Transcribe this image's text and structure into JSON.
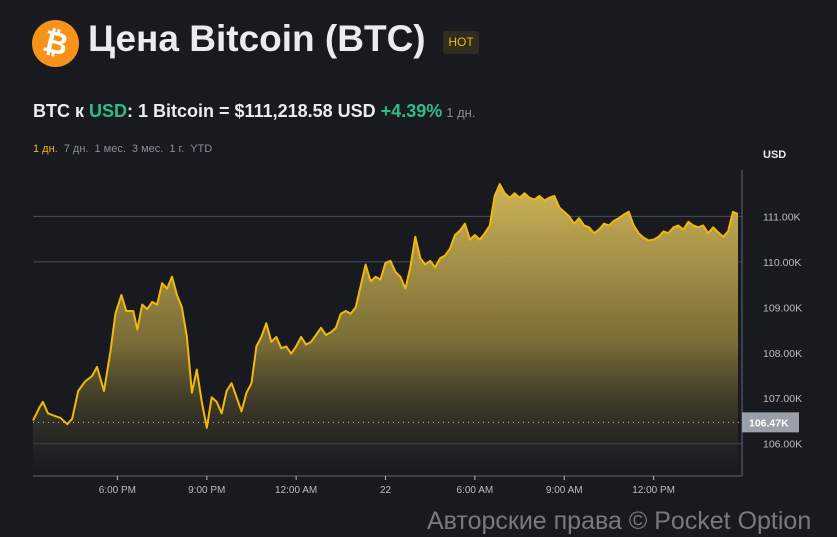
{
  "header": {
    "logo_glyph": "₿",
    "title": "Цена Bitcoin (BTC)",
    "badge": "HOT"
  },
  "rate": {
    "pair_base": "BTC к ",
    "pair_quote": "USD",
    "text": ": 1 Bitcoin = $111,218.58 USD ",
    "change": "+4.39%",
    "period": "1 дн."
  },
  "ranges": [
    {
      "label": "1 дн.",
      "active": true
    },
    {
      "label": "7 дн.",
      "active": false
    },
    {
      "label": "1 мес.",
      "active": false
    },
    {
      "label": "3 мес.",
      "active": false
    },
    {
      "label": "1 г.",
      "active": false
    },
    {
      "label": "YTD",
      "active": false
    }
  ],
  "watermark": "Авторские права © Pocket Option",
  "colors": {
    "background": "#181a20",
    "line": "#f0b90b",
    "positive": "#2ebd85",
    "badge": "#f0b90b"
  },
  "chart_data": {
    "type": "area",
    "unit_label": "USD",
    "ylim": [
      105.29,
      112.02
    ],
    "y_ticks": [
      111,
      110,
      109,
      108,
      107,
      106
    ],
    "y_tick_labels": [
      "111.00K",
      "110.00K",
      "109.00K",
      "108.00K",
      "107.00K",
      "106.00K"
    ],
    "gridlines": [
      111,
      110,
      106
    ],
    "reference_line": {
      "value": 106.47,
      "label": "106.47K",
      "style": "dotted"
    },
    "x_ticks": [
      {
        "time": "18:00",
        "label": "6:00 PM"
      },
      {
        "time": "21:00",
        "label": "9:00 PM"
      },
      {
        "time": "00:00",
        "label": "12:00 AM"
      },
      {
        "time": "03:00",
        "label": "22"
      },
      {
        "time": "06:00",
        "label": "6:00 AM"
      },
      {
        "time": "09:00",
        "label": "9:00 AM"
      },
      {
        "time": "12:00",
        "label": "12:00 PM"
      }
    ],
    "y_units": "thousand USD",
    "points": [
      [
        "15:10",
        106.51
      ],
      [
        "15:24",
        106.82
      ],
      [
        "15:30",
        106.92
      ],
      [
        "15:40",
        106.67
      ],
      [
        "15:54",
        106.61
      ],
      [
        "16:05",
        106.57
      ],
      [
        "16:19",
        106.43
      ],
      [
        "16:29",
        106.55
      ],
      [
        "16:41",
        107.16
      ],
      [
        "16:55",
        107.37
      ],
      [
        "17:09",
        107.49
      ],
      [
        "17:19",
        107.69
      ],
      [
        "17:33",
        107.16
      ],
      [
        "17:46",
        108.04
      ],
      [
        "17:56",
        108.86
      ],
      [
        "18:08",
        109.27
      ],
      [
        "18:18",
        108.92
      ],
      [
        "18:32",
        108.92
      ],
      [
        "18:40",
        108.51
      ],
      [
        "18:50",
        109.06
      ],
      [
        "19:00",
        108.96
      ],
      [
        "19:10",
        109.12
      ],
      [
        "19:20",
        109.06
      ],
      [
        "19:30",
        109.53
      ],
      [
        "19:40",
        109.41
      ],
      [
        "19:50",
        109.67
      ],
      [
        "20:00",
        109.27
      ],
      [
        "20:10",
        109.0
      ],
      [
        "20:20",
        108.35
      ],
      [
        "20:30",
        107.12
      ],
      [
        "20:40",
        107.63
      ],
      [
        "20:50",
        106.92
      ],
      [
        "21:00",
        106.35
      ],
      [
        "21:10",
        107.02
      ],
      [
        "21:20",
        106.92
      ],
      [
        "21:30",
        106.67
      ],
      [
        "21:40",
        107.16
      ],
      [
        "21:50",
        107.33
      ],
      [
        "22:00",
        107.02
      ],
      [
        "22:10",
        106.71
      ],
      [
        "22:20",
        107.12
      ],
      [
        "22:30",
        107.33
      ],
      [
        "22:40",
        108.14
      ],
      [
        "22:50",
        108.35
      ],
      [
        "23:00",
        108.65
      ],
      [
        "23:10",
        108.24
      ],
      [
        "23:20",
        108.35
      ],
      [
        "23:30",
        108.1
      ],
      [
        "23:40",
        108.14
      ],
      [
        "23:50",
        107.98
      ],
      [
        "00:00",
        108.14
      ],
      [
        "00:10",
        108.35
      ],
      [
        "00:20",
        108.18
      ],
      [
        "00:30",
        108.24
      ],
      [
        "00:40",
        108.39
      ],
      [
        "00:50",
        108.55
      ],
      [
        "01:00",
        108.39
      ],
      [
        "01:10",
        108.45
      ],
      [
        "01:20",
        108.55
      ],
      [
        "01:30",
        108.86
      ],
      [
        "01:40",
        108.92
      ],
      [
        "01:50",
        108.86
      ],
      [
        "02:00",
        109.0
      ],
      [
        "02:10",
        109.47
      ],
      [
        "02:20",
        109.94
      ],
      [
        "02:30",
        109.57
      ],
      [
        "02:40",
        109.67
      ],
      [
        "02:50",
        109.61
      ],
      [
        "03:00",
        109.98
      ],
      [
        "03:10",
        110.02
      ],
      [
        "03:20",
        109.78
      ],
      [
        "03:30",
        109.67
      ],
      [
        "03:40",
        109.41
      ],
      [
        "03:50",
        109.88
      ],
      [
        "04:00",
        110.55
      ],
      [
        "04:10",
        110.08
      ],
      [
        "04:20",
        109.94
      ],
      [
        "04:30",
        110.02
      ],
      [
        "04:40",
        109.88
      ],
      [
        "04:50",
        110.08
      ],
      [
        "05:00",
        110.14
      ],
      [
        "05:10",
        110.29
      ],
      [
        "05:20",
        110.59
      ],
      [
        "05:30",
        110.69
      ],
      [
        "05:40",
        110.84
      ],
      [
        "05:50",
        110.49
      ],
      [
        "06:00",
        110.59
      ],
      [
        "06:10",
        110.49
      ],
      [
        "06:20",
        110.63
      ],
      [
        "06:30",
        110.8
      ],
      [
        "06:40",
        111.45
      ],
      [
        "06:50",
        111.71
      ],
      [
        "07:00",
        111.51
      ],
      [
        "07:10",
        111.41
      ],
      [
        "07:20",
        111.51
      ],
      [
        "07:30",
        111.41
      ],
      [
        "07:40",
        111.51
      ],
      [
        "07:50",
        111.41
      ],
      [
        "08:00",
        111.37
      ],
      [
        "08:10",
        111.45
      ],
      [
        "08:20",
        111.35
      ],
      [
        "08:30",
        111.41
      ],
      [
        "08:40",
        111.45
      ],
      [
        "08:50",
        111.2
      ],
      [
        "09:00",
        111.1
      ],
      [
        "09:10",
        111.0
      ],
      [
        "09:20",
        110.84
      ],
      [
        "09:30",
        110.96
      ],
      [
        "09:40",
        110.8
      ],
      [
        "09:50",
        110.76
      ],
      [
        "10:00",
        110.63
      ],
      [
        "10:10",
        110.71
      ],
      [
        "10:20",
        110.84
      ],
      [
        "10:30",
        110.8
      ],
      [
        "10:40",
        110.9
      ],
      [
        "10:50",
        110.96
      ],
      [
        "11:00",
        111.04
      ],
      [
        "11:10",
        111.1
      ],
      [
        "11:20",
        110.8
      ],
      [
        "11:30",
        110.63
      ],
      [
        "11:40",
        110.53
      ],
      [
        "11:50",
        110.47
      ],
      [
        "12:00",
        110.49
      ],
      [
        "12:10",
        110.55
      ],
      [
        "12:20",
        110.67
      ],
      [
        "12:30",
        110.63
      ],
      [
        "12:40",
        110.76
      ],
      [
        "12:50",
        110.8
      ],
      [
        "13:00",
        110.71
      ],
      [
        "13:10",
        110.88
      ],
      [
        "13:20",
        110.8
      ],
      [
        "13:30",
        110.76
      ],
      [
        "13:40",
        110.8
      ],
      [
        "13:50",
        110.63
      ],
      [
        "14:00",
        110.76
      ],
      [
        "14:10",
        110.65
      ],
      [
        "14:20",
        110.55
      ],
      [
        "14:30",
        110.67
      ],
      [
        "14:40",
        111.1
      ],
      [
        "14:50",
        111.05
      ]
    ]
  }
}
